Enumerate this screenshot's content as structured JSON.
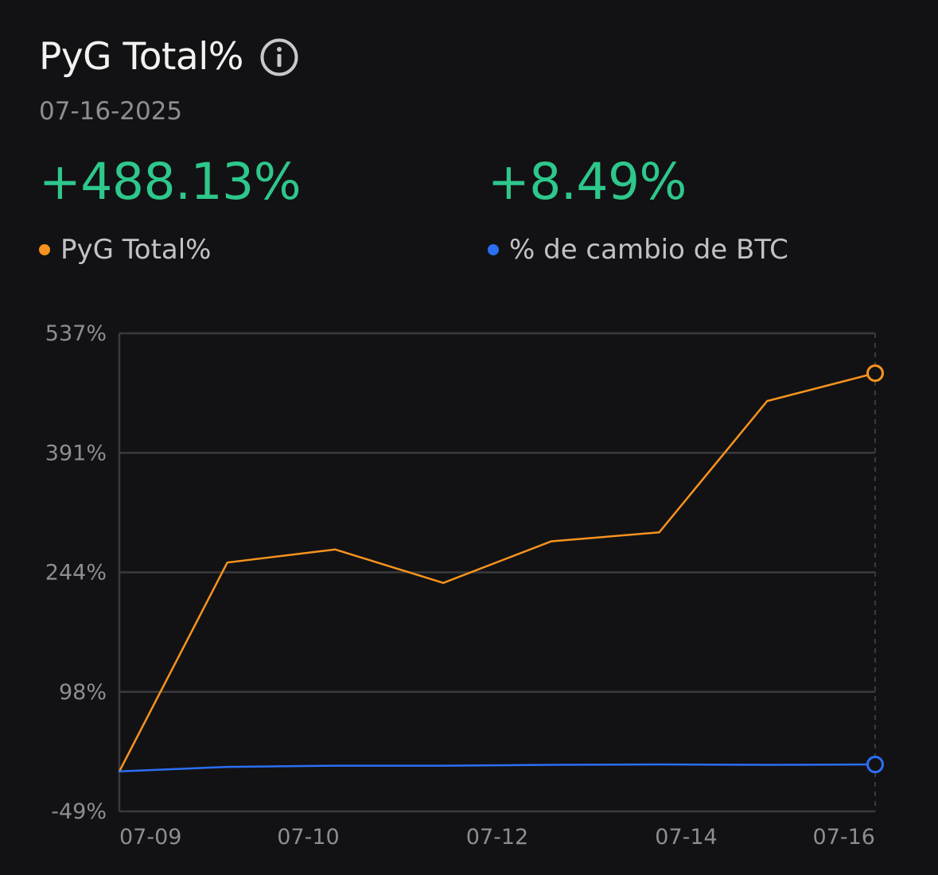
{
  "header": {
    "title": "PyG Total%",
    "info_icon": "info-circle-icon"
  },
  "date": "07-16-2025",
  "stats": [
    {
      "value": "+488.13%",
      "label": "PyG Total%",
      "dot_color": "#f7931e"
    },
    {
      "value": "+8.49%",
      "label": "% de cambio de BTC",
      "dot_color": "#2b6ff5"
    }
  ],
  "colors": {
    "background": "#121214",
    "positive": "#2ec78c",
    "orange_series": "#f7931e",
    "blue_series": "#2b6ff5",
    "grid": "#3a3a3d",
    "muted_text": "#8d8d93"
  },
  "chart_data": {
    "type": "line",
    "x_tick_labels": [
      "07-09",
      "07-10",
      "07-12",
      "07-14",
      "07-16"
    ],
    "y_tick_labels": [
      "537%",
      "391%",
      "244%",
      "98%",
      "-49%"
    ],
    "ylim": [
      -49,
      537
    ],
    "grid": true,
    "legend": "top",
    "series": [
      {
        "name": "PyG Total%",
        "color": "#f7931e",
        "values": [
          0,
          256,
          272,
          231,
          282,
          293,
          454,
          488.13
        ]
      },
      {
        "name": "% de cambio de BTC",
        "color": "#2b6ff5",
        "values": [
          0,
          5.5,
          7,
          7,
          8,
          8.5,
          8,
          8.49
        ]
      }
    ]
  }
}
